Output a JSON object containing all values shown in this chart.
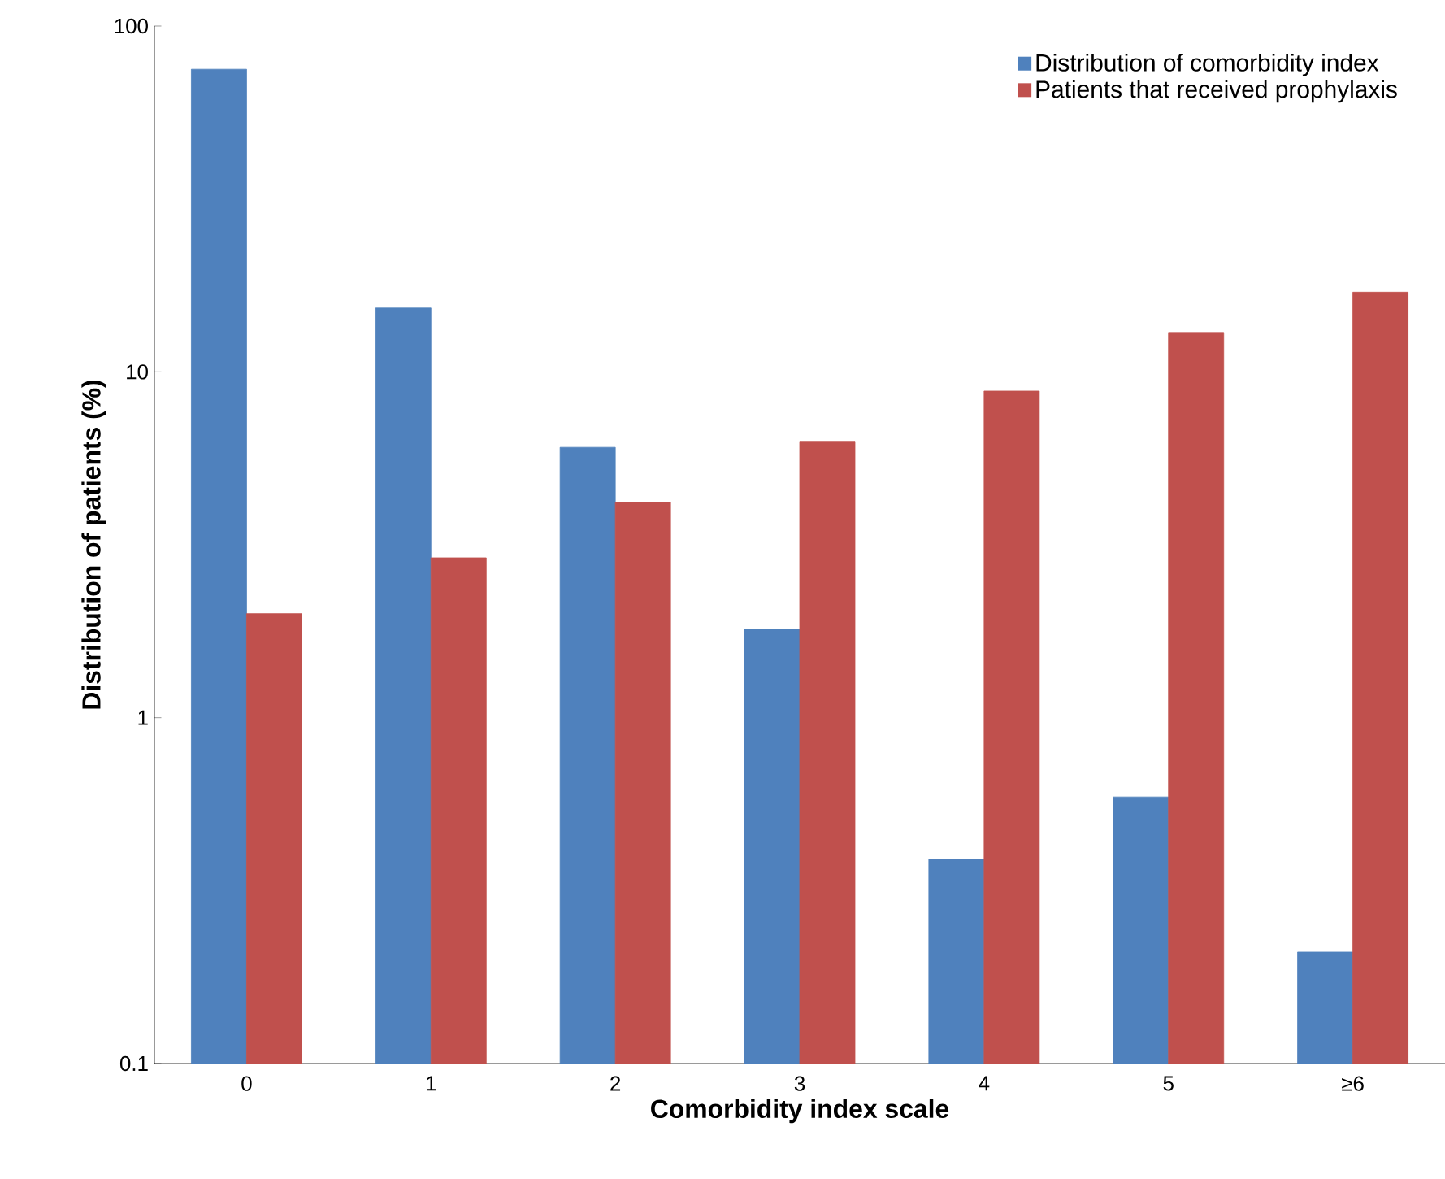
{
  "chart_data": {
    "type": "bar",
    "xlabel": "Comorbidity index scale",
    "ylabel": "Distribution of patients (%)",
    "categories": [
      "0",
      "1",
      "2",
      "3",
      "4",
      "5",
      "≥6"
    ],
    "series": [
      {
        "name": "Distribution of comorbidity index",
        "color": "#4f81bd",
        "values": [
          75,
          15.3,
          6.05,
          1.8,
          0.39,
          0.59,
          0.21
        ]
      },
      {
        "name": "Patients that received prophylaxis",
        "color": "#c0504d",
        "values": [
          2.0,
          2.9,
          4.2,
          6.3,
          8.8,
          13,
          17
        ]
      }
    ],
    "log": true,
    "ylim": [
      0.1,
      100
    ],
    "yticks": [
      0.1,
      1,
      10,
      100
    ],
    "legend": "top right"
  }
}
